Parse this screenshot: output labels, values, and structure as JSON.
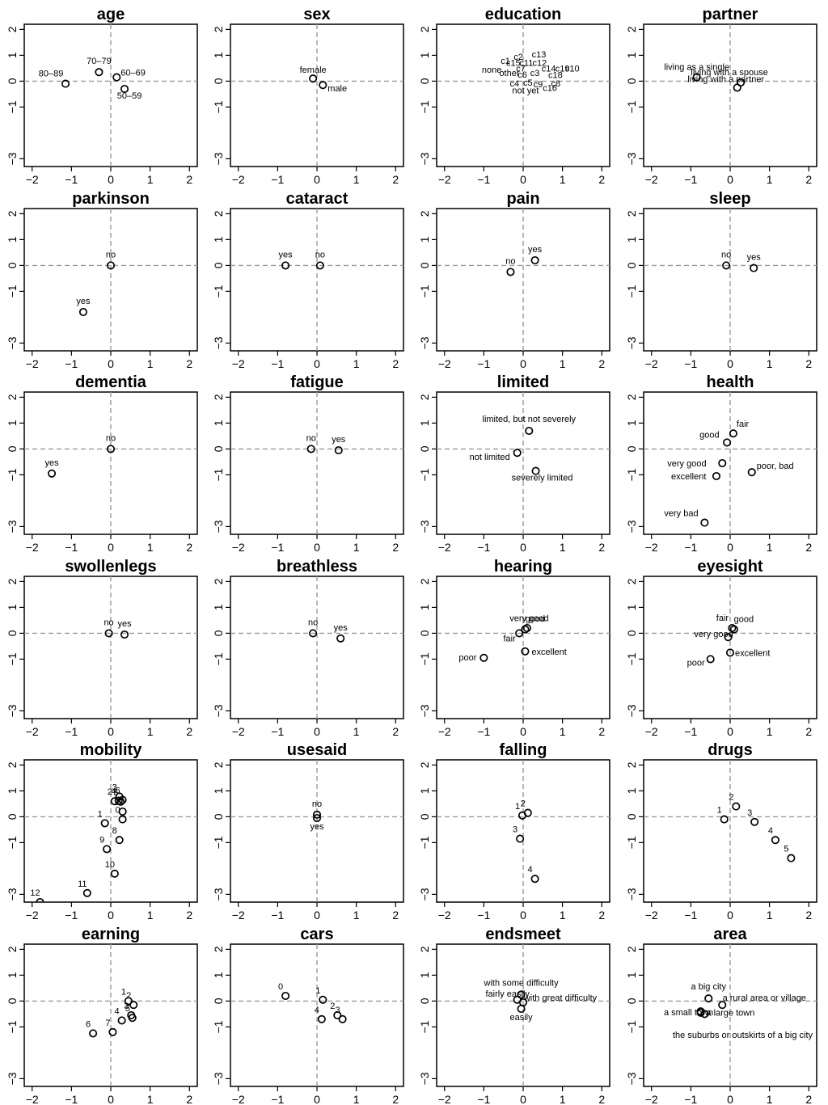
{
  "figure": {
    "x_ticks": [
      "−2",
      "−1",
      "0",
      "1",
      "2"
    ],
    "y_ticks": [
      "2",
      "1",
      "0",
      "−1",
      "−3"
    ]
  },
  "chart_data": [
    {
      "type": "scatter",
      "title": "age",
      "xlim": [
        -2.2,
        2.2
      ],
      "ylim": [
        -3.3,
        2.2
      ],
      "reference_lines": [
        0,
        0
      ],
      "points": [
        {
          "label": "80–89",
          "x": -1.15,
          "y": -0.1
        },
        {
          "label": "70–79",
          "x": -0.3,
          "y": 0.35
        },
        {
          "label": "60–69",
          "x": 0.15,
          "y": 0.15
        },
        {
          "label": "50–59",
          "x": 0.35,
          "y": -0.3
        }
      ]
    },
    {
      "type": "scatter",
      "title": "sex",
      "xlim": [
        -2.2,
        2.2
      ],
      "ylim": [
        -3.3,
        2.2
      ],
      "reference_lines": [
        0,
        0
      ],
      "points": [
        {
          "label": "female",
          "x": -0.1,
          "y": 0.1
        },
        {
          "label": "male",
          "x": 0.15,
          "y": -0.15
        }
      ]
    },
    {
      "type": "scatter",
      "title": "education",
      "xlim": [
        -2.2,
        2.2
      ],
      "ylim": [
        -3.3,
        2.2
      ],
      "reference_lines": [
        0,
        0
      ],
      "markers": false,
      "points": [
        {
          "label": "c13",
          "x": 0.4,
          "y": 1.05
        },
        {
          "label": "c2",
          "x": -0.12,
          "y": 0.95
        },
        {
          "label": "c1",
          "x": -0.45,
          "y": 0.8
        },
        {
          "label": "c15",
          "x": -0.25,
          "y": 0.72
        },
        {
          "label": "c11",
          "x": 0.08,
          "y": 0.72
        },
        {
          "label": "c12",
          "x": 0.42,
          "y": 0.72
        },
        {
          "label": "none",
          "x": -0.8,
          "y": 0.45
        },
        {
          "label": "c7",
          "x": -0.06,
          "y": 0.5
        },
        {
          "label": "c14",
          "x": 0.65,
          "y": 0.5
        },
        {
          "label": "c19",
          "x": 1.0,
          "y": 0.5
        },
        {
          "label": "c10",
          "x": 1.25,
          "y": 0.5
        },
        {
          "label": "other",
          "x": -0.35,
          "y": 0.32
        },
        {
          "label": "c6",
          "x": -0.02,
          "y": 0.27
        },
        {
          "label": "c3",
          "x": 0.3,
          "y": 0.32
        },
        {
          "label": "c18",
          "x": 0.82,
          "y": 0.25
        },
        {
          "label": "c4",
          "x": -0.22,
          "y": -0.08
        },
        {
          "label": "c5",
          "x": 0.12,
          "y": -0.05
        },
        {
          "label": "c9",
          "x": 0.38,
          "y": -0.12
        },
        {
          "label": "c8",
          "x": 0.83,
          "y": -0.08
        },
        {
          "label": "not yet",
          "x": 0.06,
          "y": -0.35
        },
        {
          "label": "c16",
          "x": 0.68,
          "y": -0.25
        }
      ]
    },
    {
      "type": "scatter",
      "title": "partner",
      "xlim": [
        -2.2,
        2.2
      ],
      "ylim": [
        -3.3,
        2.2
      ],
      "reference_lines": [
        0,
        0
      ],
      "points": [
        {
          "label": "living as a single",
          "x": -0.85,
          "y": 0.15
        },
        {
          "label": "living with a spouse",
          "x": 0.27,
          "y": -0.05
        },
        {
          "label": "living with a partner",
          "x": 0.18,
          "y": -0.25
        }
      ]
    },
    {
      "type": "scatter",
      "title": "parkinson",
      "xlim": [
        -2.2,
        2.2
      ],
      "ylim": [
        -3.3,
        2.2
      ],
      "reference_lines": [
        0,
        0
      ],
      "points": [
        {
          "label": "no",
          "x": 0.0,
          "y": 0.0
        },
        {
          "label": "yes",
          "x": -0.7,
          "y": -1.8
        }
      ]
    },
    {
      "type": "scatter",
      "title": "cataract",
      "xlim": [
        -2.2,
        2.2
      ],
      "ylim": [
        -3.3,
        2.2
      ],
      "reference_lines": [
        0,
        0
      ],
      "points": [
        {
          "label": "yes",
          "x": -0.8,
          "y": 0.0
        },
        {
          "label": "no",
          "x": 0.08,
          "y": 0.0
        }
      ]
    },
    {
      "type": "scatter",
      "title": "pain",
      "xlim": [
        -2.2,
        2.2
      ],
      "ylim": [
        -3.3,
        2.2
      ],
      "reference_lines": [
        0,
        0
      ],
      "points": [
        {
          "label": "no",
          "x": -0.32,
          "y": -0.25
        },
        {
          "label": "yes",
          "x": 0.3,
          "y": 0.2
        }
      ]
    },
    {
      "type": "scatter",
      "title": "sleep",
      "xlim": [
        -2.2,
        2.2
      ],
      "ylim": [
        -3.3,
        2.2
      ],
      "reference_lines": [
        0,
        0
      ],
      "points": [
        {
          "label": "no",
          "x": -0.1,
          "y": 0.0
        },
        {
          "label": "yes",
          "x": 0.6,
          "y": -0.1
        }
      ]
    },
    {
      "type": "scatter",
      "title": "dementia",
      "xlim": [
        -2.2,
        2.2
      ],
      "ylim": [
        -3.3,
        2.2
      ],
      "reference_lines": [
        0,
        0
      ],
      "points": [
        {
          "label": "no",
          "x": 0.0,
          "y": 0.0
        },
        {
          "label": "yes",
          "x": -1.5,
          "y": -0.95
        }
      ]
    },
    {
      "type": "scatter",
      "title": "fatigue",
      "xlim": [
        -2.2,
        2.2
      ],
      "ylim": [
        -3.3,
        2.2
      ],
      "reference_lines": [
        0,
        0
      ],
      "points": [
        {
          "label": "no",
          "x": -0.15,
          "y": 0.0
        },
        {
          "label": "yes",
          "x": 0.55,
          "y": -0.05
        }
      ]
    },
    {
      "type": "scatter",
      "title": "limited",
      "xlim": [
        -2.2,
        2.2
      ],
      "ylim": [
        -3.3,
        2.2
      ],
      "reference_lines": [
        0,
        0
      ],
      "points": [
        {
          "label": "limited, but not severely",
          "x": 0.15,
          "y": 0.7
        },
        {
          "label": "not limited",
          "x": -0.15,
          "y": -0.15
        },
        {
          "label": "severely limited",
          "x": 0.32,
          "y": -0.85
        }
      ]
    },
    {
      "type": "scatter",
      "title": "health",
      "xlim": [
        -2.2,
        2.2
      ],
      "ylim": [
        -3.3,
        2.2
      ],
      "reference_lines": [
        0,
        0
      ],
      "points": [
        {
          "label": "fair",
          "x": 0.08,
          "y": 0.6
        },
        {
          "label": "good",
          "x": -0.08,
          "y": 0.25
        },
        {
          "label": "very good",
          "x": -0.2,
          "y": -0.55
        },
        {
          "label": "poor, bad",
          "x": 0.55,
          "y": -0.9
        },
        {
          "label": "excellent",
          "x": -0.35,
          "y": -1.05
        },
        {
          "label": "very bad",
          "x": -0.65,
          "y": -2.85
        }
      ]
    },
    {
      "type": "scatter",
      "title": "swollenlegs",
      "xlim": [
        -2.2,
        2.2
      ],
      "ylim": [
        -3.3,
        2.2
      ],
      "reference_lines": [
        0,
        0
      ],
      "points": [
        {
          "label": "no",
          "x": -0.05,
          "y": 0.0
        },
        {
          "label": "yes",
          "x": 0.35,
          "y": -0.05
        }
      ]
    },
    {
      "type": "scatter",
      "title": "breathless",
      "xlim": [
        -2.2,
        2.2
      ],
      "ylim": [
        -3.3,
        2.2
      ],
      "reference_lines": [
        0,
        0
      ],
      "points": [
        {
          "label": "no",
          "x": -0.1,
          "y": 0.0
        },
        {
          "label": "yes",
          "x": 0.6,
          "y": -0.2
        }
      ]
    },
    {
      "type": "scatter",
      "title": "hearing",
      "xlim": [
        -2.2,
        2.2
      ],
      "ylim": [
        -3.3,
        2.2
      ],
      "reference_lines": [
        0,
        0
      ],
      "points": [
        {
          "label": "very good",
          "x": 0.05,
          "y": 0.15
        },
        {
          "label": "good",
          "x": 0.1,
          "y": 0.2
        },
        {
          "label": "fair",
          "x": -0.1,
          "y": 0.0
        },
        {
          "label": "excellent",
          "x": 0.05,
          "y": -0.7
        },
        {
          "label": "poor",
          "x": -1.0,
          "y": -0.95
        }
      ]
    },
    {
      "type": "scatter",
      "title": "eyesight",
      "xlim": [
        -2.2,
        2.2
      ],
      "ylim": [
        -3.3,
        2.2
      ],
      "reference_lines": [
        0,
        0
      ],
      "points": [
        {
          "label": "fair",
          "x": 0.05,
          "y": 0.2
        },
        {
          "label": "good",
          "x": 0.1,
          "y": 0.15
        },
        {
          "label": "very good",
          "x": -0.05,
          "y": -0.15
        },
        {
          "label": "excellent",
          "x": 0.0,
          "y": -0.75
        },
        {
          "label": "poor",
          "x": -0.5,
          "y": -1.0
        }
      ]
    },
    {
      "type": "scatter",
      "title": "mobility",
      "xlim": [
        -2.2,
        2.2
      ],
      "ylim": [
        -3.3,
        2.2
      ],
      "reference_lines": [
        0,
        0
      ],
      "points": [
        {
          "label": "2",
          "x": 0.1,
          "y": 0.6
        },
        {
          "label": "3",
          "x": 0.22,
          "y": 0.78
        },
        {
          "label": "4",
          "x": 0.2,
          "y": 0.62
        },
        {
          "label": "5",
          "x": 0.25,
          "y": 0.58
        },
        {
          "label": "6",
          "x": 0.3,
          "y": 0.65
        },
        {
          "label": "7",
          "x": 0.3,
          "y": 0.2
        },
        {
          "label": "1",
          "x": -0.15,
          "y": -0.25
        },
        {
          "label": "0",
          "x": 0.3,
          "y": -0.1
        },
        {
          "label": "8",
          "x": 0.22,
          "y": -0.9
        },
        {
          "label": "9",
          "x": -0.1,
          "y": -1.25
        },
        {
          "label": "10",
          "x": 0.1,
          "y": -2.2
        },
        {
          "label": "11",
          "x": -0.6,
          "y": -2.95
        },
        {
          "label": "12",
          "x": -1.8,
          "y": -3.3
        }
      ]
    },
    {
      "type": "scatter",
      "title": "usesaid",
      "xlim": [
        -2.2,
        2.2
      ],
      "ylim": [
        -3.3,
        2.2
      ],
      "reference_lines": [
        0,
        0
      ],
      "points": [
        {
          "label": "no",
          "x": 0.0,
          "y": 0.08
        },
        {
          "label": "yes",
          "x": 0.0,
          "y": -0.05
        }
      ]
    },
    {
      "type": "scatter",
      "title": "falling",
      "xlim": [
        -2.2,
        2.2
      ],
      "ylim": [
        -3.3,
        2.2
      ],
      "reference_lines": [
        0,
        0
      ],
      "points": [
        {
          "label": "1",
          "x": -0.02,
          "y": 0.05
        },
        {
          "label": "2",
          "x": 0.12,
          "y": 0.15
        },
        {
          "label": "3",
          "x": -0.08,
          "y": -0.85
        },
        {
          "label": "4",
          "x": 0.3,
          "y": -2.4
        }
      ]
    },
    {
      "type": "scatter",
      "title": "drugs",
      "xlim": [
        -2.2,
        2.2
      ],
      "ylim": [
        -3.3,
        2.2
      ],
      "reference_lines": [
        0,
        0
      ],
      "points": [
        {
          "label": "1",
          "x": -0.15,
          "y": -0.1
        },
        {
          "label": "2",
          "x": 0.15,
          "y": 0.4
        },
        {
          "label": "3",
          "x": 0.62,
          "y": -0.2
        },
        {
          "label": "4",
          "x": 1.15,
          "y": -0.9
        },
        {
          "label": "5",
          "x": 1.55,
          "y": -1.6
        }
      ]
    },
    {
      "type": "scatter",
      "title": "earning",
      "xlim": [
        -2.2,
        2.2
      ],
      "ylim": [
        -3.3,
        2.2
      ],
      "reference_lines": [
        0,
        0
      ],
      "points": [
        {
          "label": "1",
          "x": 0.45,
          "y": 0.0
        },
        {
          "label": "2",
          "x": 0.58,
          "y": -0.15
        },
        {
          "label": "3",
          "x": 0.52,
          "y": -0.55
        },
        {
          "label": "4",
          "x": 0.28,
          "y": -0.75
        },
        {
          "label": "5",
          "x": 0.55,
          "y": -0.65
        },
        {
          "label": "6",
          "x": -0.45,
          "y": -1.25
        },
        {
          "label": "7",
          "x": 0.05,
          "y": -1.2
        }
      ]
    },
    {
      "type": "scatter",
      "title": "cars",
      "xlim": [
        -2.2,
        2.2
      ],
      "ylim": [
        -3.3,
        2.2
      ],
      "reference_lines": [
        0,
        0
      ],
      "points": [
        {
          "label": "0",
          "x": -0.8,
          "y": 0.2
        },
        {
          "label": "1",
          "x": 0.15,
          "y": 0.05
        },
        {
          "label": "2",
          "x": 0.52,
          "y": -0.55
        },
        {
          "label": "3",
          "x": 0.65,
          "y": -0.7
        },
        {
          "label": "4",
          "x": 0.12,
          "y": -0.7
        }
      ]
    },
    {
      "type": "scatter",
      "title": "endsmeet",
      "xlim": [
        -2.2,
        2.2
      ],
      "ylim": [
        -3.3,
        2.2
      ],
      "reference_lines": [
        0,
        0
      ],
      "points": [
        {
          "label": "with some difficulty",
          "x": -0.05,
          "y": 0.25
        },
        {
          "label": "fairly easily",
          "x": -0.15,
          "y": 0.05
        },
        {
          "label": "with great difficulty",
          "x": 0.0,
          "y": -0.05
        },
        {
          "label": "easily",
          "x": -0.05,
          "y": -0.3
        }
      ]
    },
    {
      "type": "scatter",
      "title": "area",
      "xlim": [
        -2.2,
        2.2
      ],
      "ylim": [
        -3.3,
        2.2
      ],
      "reference_lines": [
        0,
        0
      ],
      "points": [
        {
          "label": "a big city",
          "x": -0.55,
          "y": 0.1
        },
        {
          "label": "a rural area or village",
          "x": -0.2,
          "y": -0.15
        },
        {
          "label": "a small town",
          "x": -0.75,
          "y": -0.4
        },
        {
          "label": "a large town",
          "x": -0.65,
          "y": -0.5
        },
        {
          "label": "the suburbs or outskirts of a big city",
          "x": -0.75,
          "y": -0.45
        }
      ]
    }
  ]
}
